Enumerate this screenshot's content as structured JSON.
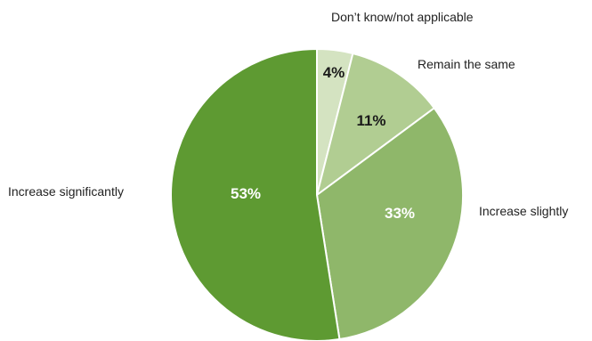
{
  "chart_data": {
    "type": "pie",
    "title": "",
    "slices": [
      {
        "label": "Don’t know/not applicable",
        "value": 4,
        "value_label": "4%",
        "color": "#d4e3c1",
        "label_color": "#1a1a1a"
      },
      {
        "label": "Remain the same",
        "value": 11,
        "value_label": "11%",
        "color": "#b1cd92",
        "label_color": "#1a1a1a"
      },
      {
        "label": "Increase slightly",
        "value": 33,
        "value_label": "33%",
        "color": "#8fb76a",
        "label_color": "#ffffff"
      },
      {
        "label": "Increase significantly",
        "value": 53,
        "value_label": "53%",
        "color": "#5e9a32",
        "label_color": "#ffffff"
      }
    ],
    "start_angle": "top",
    "direction": "clockwise",
    "legend": "none (labels beside slices)"
  }
}
